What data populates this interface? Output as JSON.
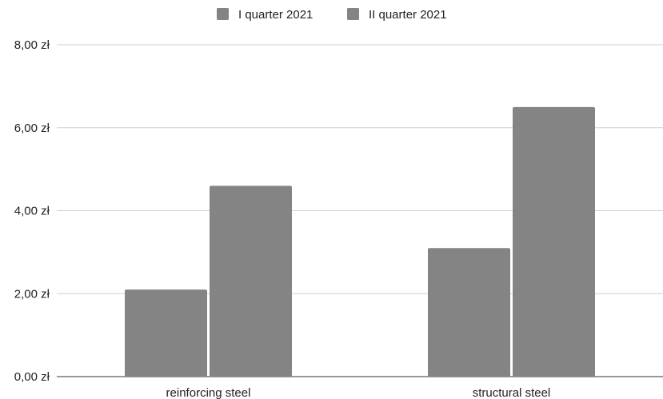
{
  "chart_data": {
    "type": "bar",
    "categories": [
      "reinforcing steel",
      "structural steel"
    ],
    "series": [
      {
        "name": "I quarter 2021",
        "values": [
          2.1,
          3.1
        ],
        "color": "#848484"
      },
      {
        "name": "II quarter 2021",
        "values": [
          4.6,
          6.5
        ],
        "color": "#848484"
      }
    ],
    "ylim": [
      0,
      8
    ],
    "yticks": [
      0,
      2,
      4,
      6,
      8
    ],
    "ytick_labels": [
      "0,00 zł",
      "2,00 zł",
      "4,00 zł",
      "6,00 zł",
      "8,00 zł"
    ],
    "grid": true,
    "legend_position": "top"
  }
}
